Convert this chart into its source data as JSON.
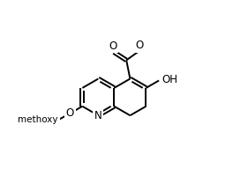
{
  "bg": "#ffffff",
  "lw": 1.4,
  "fs": 8.5,
  "bond_color": "#000000",
  "double_off": 0.013,
  "shorten": 0.16,
  "xlim": [
    0.0,
    1.05
  ],
  "ylim": [
    0.0,
    1.05
  ],
  "ring_r": 0.148,
  "LCx": 0.355,
  "LCy": 0.43,
  "RCx": 0.611,
  "RCy": 0.43
}
